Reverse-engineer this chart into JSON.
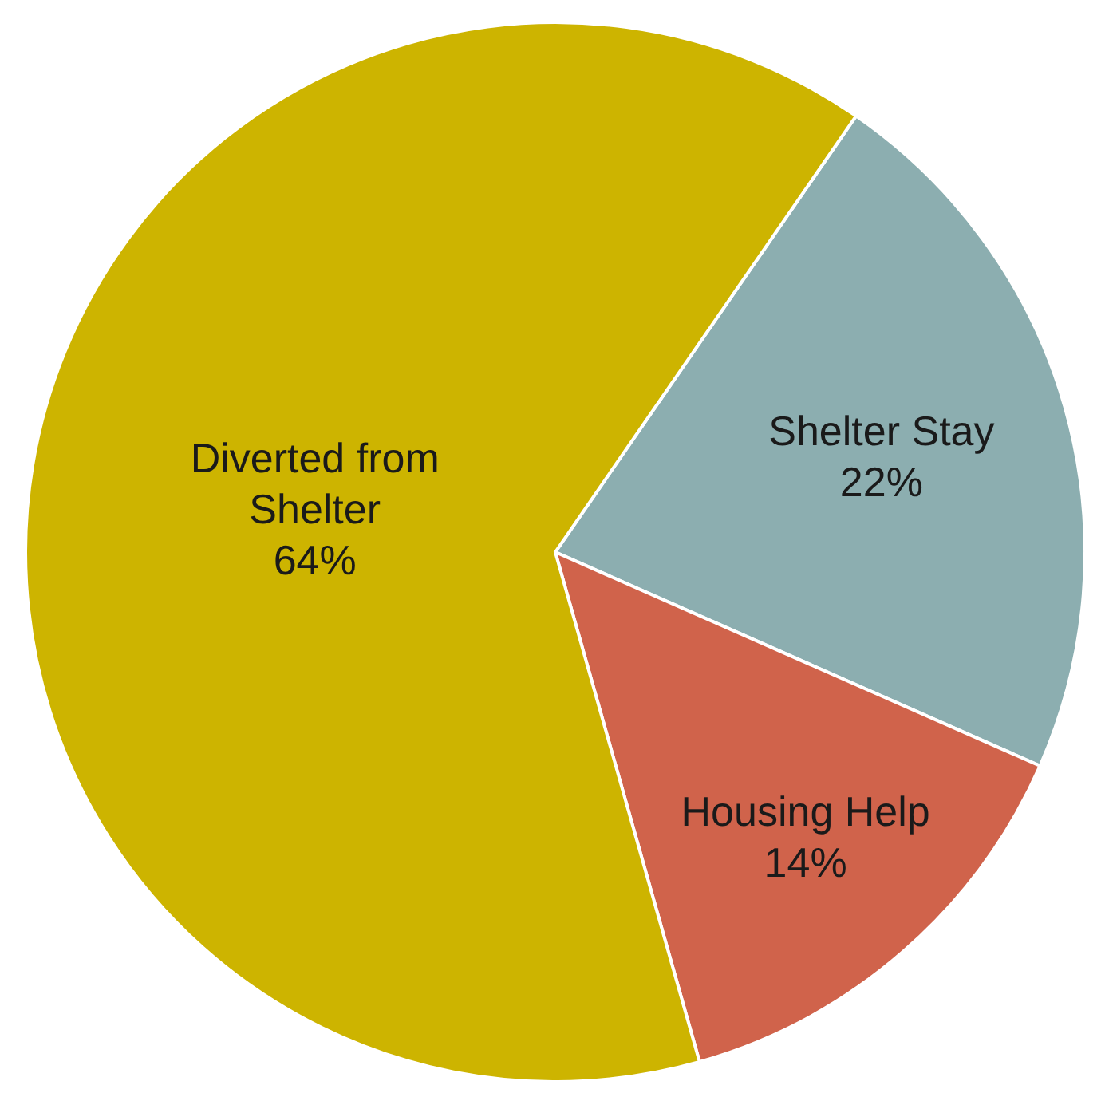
{
  "chart_data": {
    "type": "pie",
    "categories": [
      "Shelter Stay",
      "Housing Help",
      "Diverted from Shelter"
    ],
    "values": [
      22,
      14,
      64
    ],
    "value_labels": [
      "22%",
      "14%",
      "64%"
    ],
    "colors": [
      "#8caeb0",
      "#d0634b",
      "#cdb400"
    ]
  }
}
